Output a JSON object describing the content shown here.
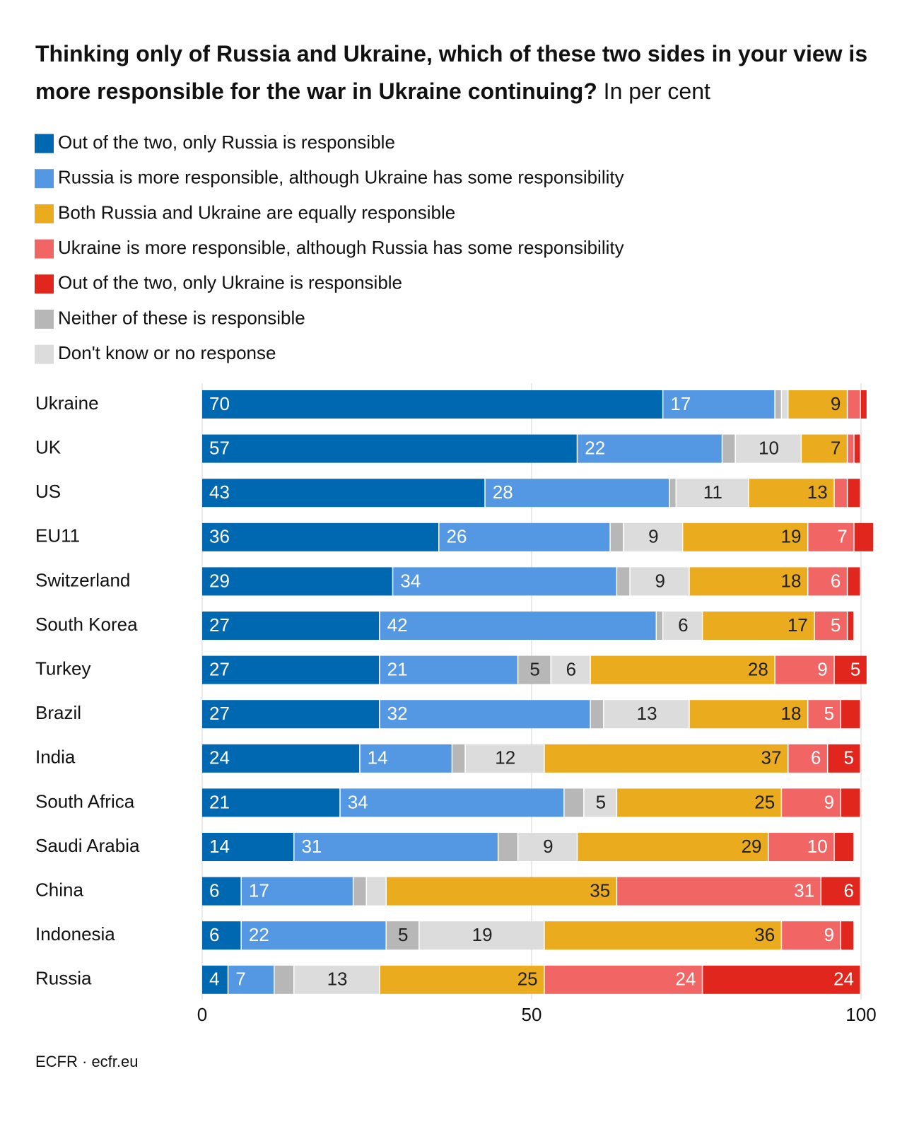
{
  "chart_data": {
    "type": "stacked-bar-horizontal",
    "title": "Thinking only of Russia and Ukraine, which of these two sides in your view is more responsible for the war in Ukraine continuing?",
    "subtitle": "In per cent",
    "source": "ECFR · ecfr.eu",
    "categories": [
      "Ukraine",
      "UK",
      "US",
      "EU11",
      "Switzerland",
      "South Korea",
      "Turkey",
      "Brazil",
      "India",
      "South Africa",
      "Saudi Arabia",
      "China",
      "Indonesia",
      "Russia"
    ],
    "series": [
      {
        "name": "Out of the two, only Russia is responsible",
        "color": "#0067b1",
        "values": [
          70,
          57,
          43,
          36,
          29,
          27,
          27,
          27,
          24,
          21,
          14,
          6,
          6,
          4
        ]
      },
      {
        "name": "Russia is more responsible, although Ukraine has some responsibility",
        "color": "#5497e2",
        "values": [
          17,
          22,
          28,
          26,
          34,
          42,
          21,
          32,
          14,
          34,
          31,
          17,
          22,
          7
        ]
      },
      {
        "name": "Both Russia and Ukraine are equally responsible",
        "color": "#ebab1e",
        "values": [
          9,
          7,
          13,
          19,
          18,
          17,
          28,
          18,
          37,
          25,
          29,
          35,
          36,
          25
        ]
      },
      {
        "name": "Ukraine is more responsible, although Russia has some responsibility",
        "color": "#f16664",
        "values": [
          2,
          1,
          2,
          7,
          6,
          5,
          9,
          5,
          6,
          9,
          10,
          31,
          9,
          24
        ]
      },
      {
        "name": "Out of the two, only Ukraine is responsible",
        "color": "#e0261d",
        "values": [
          1,
          1,
          2,
          3,
          2,
          1,
          5,
          3,
          5,
          3,
          3,
          6,
          2,
          24
        ]
      },
      {
        "name": "Neither of these is responsible",
        "color": "#b7b7b7",
        "values": [
          1,
          2,
          1,
          2,
          2,
          1,
          5,
          2,
          2,
          3,
          3,
          2,
          5,
          3
        ]
      },
      {
        "name": "Don't know or no response",
        "color": "#dcdcdc",
        "values": [
          1,
          10,
          11,
          9,
          9,
          6,
          6,
          13,
          12,
          5,
          9,
          3,
          19,
          13
        ]
      }
    ],
    "xlim": [
      0,
      100
    ],
    "xticks": [
      0,
      50,
      100
    ],
    "grid": true
  }
}
